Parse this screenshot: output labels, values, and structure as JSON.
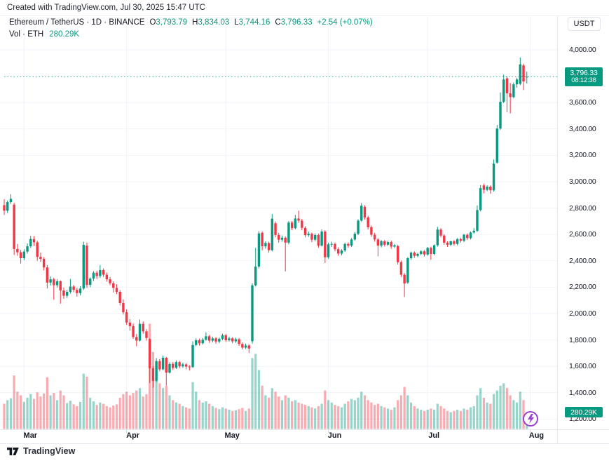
{
  "header": {
    "created_note": "Created with TradingView.com, Jul 30, 2025 15:47 UTC"
  },
  "legend": {
    "title": "Ethereum / TetherUS · 1D · BINANCE",
    "ohlc": [
      {
        "label": "O",
        "value": "3,793.79"
      },
      {
        "label": "H",
        "value": "3,834.03"
      },
      {
        "label": "L",
        "value": "3,744.16"
      },
      {
        "label": "C",
        "value": "3,796.33"
      }
    ],
    "change": "+2.54 (+0.07%)",
    "volume_label": "Vol · ETH",
    "volume_value": "280.29K"
  },
  "price_axis": {
    "currency_button": "USDT",
    "labels": [
      "4,000.00",
      "3,600.00",
      "3,400.00",
      "3,200.00",
      "3,000.00",
      "2,800.00",
      "2,600.00",
      "2,400.00",
      "2,200.00",
      "2,000.00",
      "1,800.00",
      "1,600.00",
      "1,400.00",
      "1,200.00"
    ],
    "price_badge": {
      "price": "3,796.33",
      "countdown": "08:12:38"
    },
    "volume_badge": "280.29K"
  },
  "time_axis": {
    "months": [
      {
        "label": "Mar",
        "index": 7
      },
      {
        "label": "Apr",
        "index": 38
      },
      {
        "label": "May",
        "index": 68
      },
      {
        "label": "Jun",
        "index": 99
      },
      {
        "label": "Jul",
        "index": 129
      },
      {
        "label": "Aug",
        "index": 160
      }
    ]
  },
  "footer": {
    "logo_text": "TradingView"
  },
  "colors": {
    "up": "#089981",
    "down": "#F23645",
    "vol_up": "rgba(8,153,129,0.42)",
    "vol_down": "rgba(242,54,69,0.42)",
    "grid": "#f0f3fa",
    "separator": "#e0e3eb",
    "badge": "#089981",
    "price_line": "#089981",
    "accent_purple": "#9b3fd9",
    "text": "#131722"
  },
  "chart_data": {
    "type": "candlestick",
    "title": "Ethereum / TetherUS",
    "exchange": "BINANCE",
    "interval": "1D",
    "currency": "USDT",
    "start_date": "2025-02-22",
    "end_date": "2025-07-30",
    "visible_price_range": [
      1200,
      4000
    ],
    "last_price": 3796.33,
    "last_change": "+2.54 (+0.07%)",
    "last_volume_k": 280.29,
    "candles": [
      [
        2822,
        2868,
        2748,
        2780
      ],
      [
        2780,
        2858,
        2762,
        2845
      ],
      [
        2845,
        2905,
        2832,
        2870
      ],
      [
        2826,
        2840,
        2445,
        2490
      ],
      [
        2490,
        2528,
        2438,
        2465
      ],
      [
        2465,
        2482,
        2380,
        2420
      ],
      [
        2420,
        2488,
        2405,
        2470
      ],
      [
        2470,
        2532,
        2455,
        2510
      ],
      [
        2510,
        2590,
        2498,
        2565
      ],
      [
        2565,
        2588,
        2512,
        2540
      ],
      [
        2540,
        2552,
        2400,
        2430
      ],
      [
        2430,
        2462,
        2392,
        2415
      ],
      [
        2415,
        2428,
        2328,
        2350
      ],
      [
        2350,
        2368,
        2190,
        2235
      ],
      [
        2235,
        2282,
        2212,
        2260
      ],
      [
        2260,
        2272,
        2105,
        2215
      ],
      [
        2215,
        2262,
        2198,
        2245
      ],
      [
        2245,
        2252,
        2075,
        2175
      ],
      [
        2175,
        2198,
        2112,
        2135
      ],
      [
        2135,
        2180,
        2118,
        2165
      ],
      [
        2165,
        2262,
        2152,
        2205
      ],
      [
        2205,
        2218,
        2162,
        2180
      ],
      [
        2180,
        2195,
        2128,
        2155
      ],
      [
        2155,
        2208,
        2138,
        2190
      ],
      [
        2190,
        2545,
        2178,
        2521
      ],
      [
        2515,
        2538,
        2195,
        2218
      ],
      [
        2218,
        2275,
        2200,
        2265
      ],
      [
        2265,
        2322,
        2248,
        2310
      ],
      [
        2310,
        2325,
        2262,
        2285
      ],
      [
        2285,
        2368,
        2270,
        2330
      ],
      [
        2330,
        2342,
        2278,
        2295
      ],
      [
        2295,
        2312,
        2242,
        2260
      ],
      [
        2260,
        2278,
        2215,
        2230
      ],
      [
        2230,
        2245,
        2160,
        2195
      ],
      [
        2195,
        2222,
        2148,
        2165
      ],
      [
        2165,
        2178,
        2062,
        2080
      ],
      [
        2080,
        2108,
        1992,
        2010
      ],
      [
        2010,
        2032,
        1915,
        1932
      ],
      [
        1932,
        1958,
        1870,
        1905
      ],
      [
        1905,
        1925,
        1808,
        1822
      ],
      [
        1822,
        1845,
        1752,
        1795
      ],
      [
        1795,
        1955,
        1788,
        1922
      ],
      [
        1922,
        1940,
        1848,
        1865
      ],
      [
        1865,
        1882,
        1795,
        1815
      ],
      [
        1807,
        1812,
        1473,
        1585
      ],
      [
        1585,
        1602,
        1438,
        1490
      ],
      [
        1490,
        1662,
        1482,
        1640
      ],
      [
        1640,
        1655,
        1562,
        1577
      ],
      [
        1577,
        1682,
        1570,
        1665
      ],
      [
        1665,
        1672,
        1455,
        1552
      ],
      [
        1552,
        1630,
        1545,
        1618
      ],
      [
        1618,
        1632,
        1572,
        1588
      ],
      [
        1588,
        1645,
        1580,
        1632
      ],
      [
        1632,
        1642,
        1585,
        1600
      ],
      [
        1600,
        1628,
        1588,
        1615
      ],
      [
        1615,
        1625,
        1578,
        1598
      ],
      [
        1598,
        1610,
        1568,
        1594
      ],
      [
        1594,
        1790,
        1588,
        1762
      ],
      [
        1762,
        1812,
        1752,
        1798
      ],
      [
        1798,
        1810,
        1758,
        1775
      ],
      [
        1775,
        1815,
        1765,
        1802
      ],
      [
        1802,
        1858,
        1795,
        1828
      ],
      [
        1828,
        1838,
        1778,
        1795
      ],
      [
        1795,
        1825,
        1782,
        1812
      ],
      [
        1812,
        1822,
        1772,
        1788
      ],
      [
        1788,
        1818,
        1775,
        1808
      ],
      [
        1808,
        1848,
        1798,
        1835
      ],
      [
        1835,
        1845,
        1785,
        1798
      ],
      [
        1798,
        1825,
        1788,
        1812
      ],
      [
        1812,
        1822,
        1775,
        1790
      ],
      [
        1790,
        1818,
        1778,
        1805
      ],
      [
        1805,
        1815,
        1755,
        1770
      ],
      [
        1770,
        1782,
        1728,
        1742
      ],
      [
        1742,
        1772,
        1732,
        1758
      ],
      [
        1758,
        1768,
        1700,
        1735
      ],
      [
        1790,
        2230,
        1772,
        2214
      ],
      [
        2214,
        2498,
        2205,
        2356
      ],
      [
        2356,
        2625,
        2342,
        2608
      ],
      [
        2613,
        2622,
        2480,
        2510
      ],
      [
        2510,
        2548,
        2492,
        2535
      ],
      [
        2535,
        2545,
        2462,
        2481
      ],
      [
        2481,
        2755,
        2472,
        2720
      ],
      [
        2685,
        2698,
        2578,
        2596
      ],
      [
        2596,
        2612,
        2538,
        2560
      ],
      [
        2560,
        2592,
        2545,
        2575
      ],
      [
        2575,
        2585,
        2320,
        2538
      ],
      [
        2538,
        2702,
        2525,
        2690
      ],
      [
        2690,
        2702,
        2632,
        2648
      ],
      [
        2648,
        2748,
        2638,
        2721
      ],
      [
        2721,
        2780,
        2688,
        2705
      ],
      [
        2705,
        2718,
        2632,
        2650
      ],
      [
        2650,
        2662,
        2578,
        2595
      ],
      [
        2595,
        2622,
        2582,
        2605
      ],
      [
        2605,
        2615,
        2542,
        2560
      ],
      [
        2560,
        2608,
        2548,
        2596
      ],
      [
        2596,
        2605,
        2498,
        2515
      ],
      [
        2515,
        2638,
        2508,
        2622
      ],
      [
        2622,
        2632,
        2383,
        2427
      ],
      [
        2427,
        2538,
        2415,
        2525
      ],
      [
        2525,
        2545,
        2505,
        2528
      ],
      [
        2528,
        2538,
        2472,
        2488
      ],
      [
        2488,
        2502,
        2438,
        2455
      ],
      [
        2455,
        2488,
        2442,
        2478
      ],
      [
        2478,
        2538,
        2468,
        2528
      ],
      [
        2528,
        2540,
        2498,
        2515
      ],
      [
        2515,
        2572,
        2505,
        2562
      ],
      [
        2562,
        2618,
        2552,
        2605
      ],
      [
        2605,
        2715,
        2595,
        2705
      ],
      [
        2705,
        2838,
        2695,
        2818
      ],
      [
        2809,
        2822,
        2712,
        2729
      ],
      [
        2729,
        2742,
        2638,
        2655
      ],
      [
        2655,
        2668,
        2582,
        2598
      ],
      [
        2598,
        2612,
        2545,
        2562
      ],
      [
        2562,
        2572,
        2435,
        2515
      ],
      [
        2515,
        2558,
        2502,
        2548
      ],
      [
        2548,
        2558,
        2508,
        2522
      ],
      [
        2522,
        2552,
        2512,
        2542
      ],
      [
        2542,
        2552,
        2492,
        2508
      ],
      [
        2508,
        2528,
        2498,
        2518
      ],
      [
        2512,
        2522,
        2372,
        2390
      ],
      [
        2390,
        2402,
        2278,
        2295
      ],
      [
        2295,
        2308,
        2126,
        2228
      ],
      [
        2235,
        2428,
        2225,
        2420
      ],
      [
        2420,
        2470,
        2408,
        2462
      ],
      [
        2462,
        2472,
        2422,
        2438
      ],
      [
        2438,
        2460,
        2428,
        2452
      ],
      [
        2452,
        2480,
        2442,
        2472
      ],
      [
        2472,
        2482,
        2432,
        2448
      ],
      [
        2448,
        2505,
        2438,
        2498
      ],
      [
        2498,
        2508,
        2408,
        2452
      ],
      [
        2452,
        2525,
        2442,
        2518
      ],
      [
        2518,
        2658,
        2508,
        2637
      ],
      [
        2637,
        2648,
        2578,
        2592
      ],
      [
        2592,
        2602,
        2522,
        2538
      ],
      [
        2538,
        2548,
        2505,
        2522
      ],
      [
        2522,
        2552,
        2512,
        2548
      ],
      [
        2548,
        2558,
        2515,
        2528
      ],
      [
        2528,
        2572,
        2518,
        2565
      ],
      [
        2565,
        2575,
        2538,
        2552
      ],
      [
        2552,
        2605,
        2542,
        2598
      ],
      [
        2598,
        2608,
        2558,
        2572
      ],
      [
        2572,
        2622,
        2562,
        2615
      ],
      [
        2615,
        2648,
        2605,
        2628
      ],
      [
        2628,
        2820,
        2618,
        2785
      ],
      [
        2785,
        2975,
        2775,
        2951
      ],
      [
        2972,
        2985,
        2912,
        2938
      ],
      [
        2938,
        2972,
        2928,
        2962
      ],
      [
        2962,
        2972,
        2908,
        2935
      ],
      [
        2935,
        3168,
        2925,
        3137
      ],
      [
        3145,
        3430,
        3135,
        3403
      ],
      [
        3403,
        3677,
        3393,
        3606
      ],
      [
        3606,
        3812,
        3596,
        3775
      ],
      [
        3784,
        3798,
        3527,
        3670
      ],
      [
        3670,
        3748,
        3518,
        3642
      ],
      [
        3642,
        3752,
        3632,
        3738
      ],
      [
        3738,
        3788,
        3712,
        3775
      ],
      [
        3742,
        3942,
        3732,
        3890
      ],
      [
        3882,
        3895,
        3695,
        3760
      ],
      [
        3793.79,
        3834.03,
        3744.16,
        3796.33
      ]
    ],
    "volumes_k": [
      420,
      480,
      510,
      890,
      620,
      560,
      450,
      520,
      580,
      500,
      610,
      540,
      590,
      860,
      560,
      600,
      480,
      640,
      560,
      430,
      470,
      410,
      380,
      450,
      920,
      870,
      520,
      460,
      400,
      440,
      420,
      380,
      360,
      390,
      410,
      520,
      580,
      620,
      560,
      600,
      640,
      680,
      540,
      580,
      1750,
      1280,
      1020,
      760,
      680,
      720,
      560,
      480,
      440,
      420,
      380,
      360,
      340,
      780,
      620,
      480,
      440,
      460,
      420,
      380,
      350,
      330,
      360,
      340,
      320,
      300,
      310,
      330,
      350,
      300,
      340,
      1180,
      1250,
      980,
      720,
      560,
      520,
      680,
      620,
      540,
      480,
      560,
      520,
      460,
      480,
      440,
      420,
      400,
      380,
      360,
      340,
      380,
      420,
      640,
      480,
      440,
      400,
      380,
      360,
      420,
      460,
      500,
      480,
      520,
      620,
      560,
      480,
      440,
      400,
      420,
      380,
      360,
      340,
      320,
      360,
      480,
      560,
      700,
      560,
      440,
      380,
      340,
      320,
      300,
      320,
      340,
      320,
      420,
      380,
      340,
      300,
      280,
      300,
      320,
      300,
      340,
      320,
      360,
      380,
      560,
      680,
      520,
      440,
      420,
      580,
      640,
      720,
      760,
      680,
      560,
      480,
      440,
      620,
      480,
      280.29
    ]
  }
}
